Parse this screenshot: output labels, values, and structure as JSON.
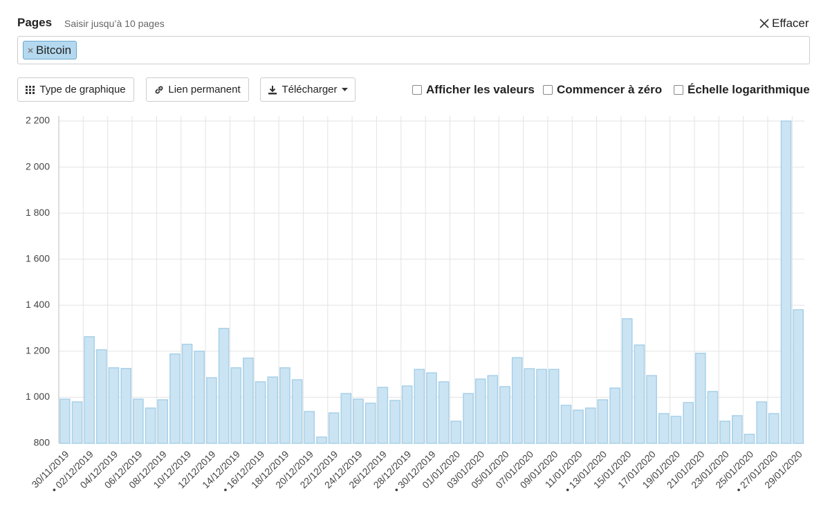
{
  "header": {
    "title": "Pages",
    "hint": "Saisir jusqu’à 10 pages",
    "clear": "Effacer"
  },
  "tags": [
    "Bitcoin"
  ],
  "toolbar": {
    "buttons": [
      "Type de graphique",
      "Lien permanent",
      "Télécharger"
    ],
    "options": [
      "Afficher les valeurs",
      "Commencer à zéro",
      "Échelle logarithmique"
    ]
  },
  "chart_data": {
    "type": "bar",
    "color": "#cbe4f3",
    "edge_color": "#a6d0e8",
    "grid": true,
    "categories": [
      "30/11/2019",
      null,
      "• 02/12/2019",
      null,
      "04/12/2019",
      null,
      "06/12/2019",
      null,
      "08/12/2019",
      null,
      "10/12/2019",
      null,
      "12/12/2019",
      null,
      "14/12/2019",
      null,
      "• 16/12/2019",
      null,
      "18/12/2019",
      null,
      "20/12/2019",
      null,
      "22/12/2019",
      null,
      "24/12/2019",
      null,
      "26/12/2019",
      null,
      "28/12/2019",
      null,
      "• 30/12/2019",
      null,
      "01/01/2020",
      null,
      "03/01/2020",
      null,
      "05/01/2020",
      null,
      "07/01/2020",
      null,
      "09/01/2020",
      null,
      "11/01/2020",
      null,
      "• 13/01/2020",
      null,
      "15/01/2020",
      null,
      "17/01/2020",
      null,
      "19/01/2020",
      null,
      "21/01/2020",
      null,
      "23/01/2020",
      null,
      "25/01/2020",
      null,
      "• 27/01/2020",
      null,
      "29/01/2020"
    ],
    "values": [
      992,
      980,
      1263,
      1206,
      1128,
      1125,
      992,
      953,
      989,
      1188,
      1230,
      1200,
      1085,
      1299,
      1128,
      1170,
      1067,
      1088,
      1128,
      1076,
      938,
      827,
      932,
      1016,
      992,
      974,
      1043,
      986,
      1049,
      1121,
      1106,
      1067,
      896,
      1016,
      1079,
      1094,
      1046,
      1172,
      1124,
      1121,
      1121,
      965,
      944,
      953,
      989,
      1040,
      1341,
      1227,
      1094,
      929,
      917,
      977,
      1191,
      1025,
      896,
      920,
      839,
      980,
      929,
      2200,
      1380
    ],
    "ylim": [
      800,
      2200
    ],
    "yticks": [
      800,
      {
        "value": 1000,
        "label": "1 000"
      },
      {
        "value": 1200,
        "label": "1 200"
      },
      {
        "value": 1400,
        "label": "1 400"
      },
      {
        "value": 1600,
        "label": "1 600"
      },
      {
        "value": 1800,
        "label": "1 800"
      },
      {
        "value": 2000,
        "label": "2 000"
      },
      {
        "value": 2200,
        "label": "2 200"
      }
    ]
  }
}
